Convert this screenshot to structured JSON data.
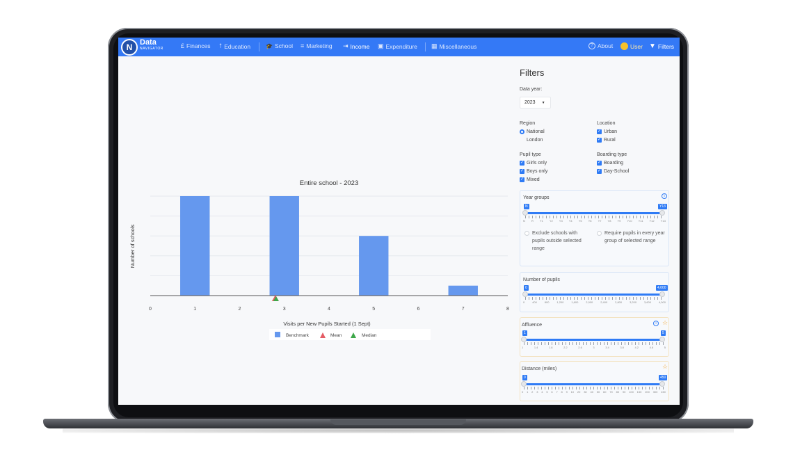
{
  "app": {
    "brand_main": "Data",
    "brand_sub": "NAVIGATOR",
    "logo_letter": "N"
  },
  "nav": {
    "items": [
      {
        "label": "Finances",
        "icon": "£"
      },
      {
        "label": "Education",
        "icon": "⭡"
      },
      {
        "label": "School",
        "icon": "🎓"
      },
      {
        "label": "Marketing",
        "icon": "≡"
      },
      {
        "label": "Income",
        "icon": "⇥"
      },
      {
        "label": "Expenditure",
        "icon": "▣"
      },
      {
        "label": "Miscellaneous",
        "icon": "▦"
      }
    ],
    "about": "About",
    "user": "User",
    "filters": "Filters"
  },
  "chart_data": {
    "type": "bar",
    "title": "Entire school - 2023",
    "xlabel": "Visits per New Pupils Started (1 Sept)",
    "ylabel": "Number of schools",
    "xlim": [
      0,
      8
    ],
    "x_ticks": [
      "0",
      "1",
      "2",
      "3",
      "4",
      "5",
      "6",
      "7",
      "8"
    ],
    "bars": [
      {
        "x": 1,
        "value": 5
      },
      {
        "x": 3,
        "value": 5
      },
      {
        "x": 5,
        "value": 3
      },
      {
        "x": 7,
        "value": 0.5
      }
    ],
    "ylim": [
      0,
      5
    ],
    "mean": 2.8,
    "median": 2.8,
    "grid": true,
    "legend": [
      "Benchmark",
      "Mean",
      "Median"
    ],
    "legend_position": "bottom",
    "colors": {
      "bar": "#6598ee",
      "mean": "#e45c64",
      "median": "#3ea84a"
    }
  },
  "filters": {
    "title": "Filters",
    "data_year_label": "Data year:",
    "data_year_value": "2023",
    "region_label": "Region",
    "region_options": [
      "National",
      "London"
    ],
    "location_label": "Location",
    "location_options": [
      "Urban",
      "Rural"
    ],
    "pupil_type_label": "Pupil type",
    "pupil_type_options": [
      "Girls only",
      "Boys only",
      "Mixed"
    ],
    "boarding_type_label": "Boarding type",
    "boarding_type_options": [
      "Boarding",
      "Day-School"
    ],
    "year_groups": {
      "title": "Year groups",
      "min_tag": "N",
      "max_tag": "Y13",
      "ticks": [
        "N",
        "R",
        "Y1",
        "Y2",
        "Y3",
        "Y4",
        "Y5",
        "Y6",
        "Y7",
        "Y8",
        "Y9",
        "Y10",
        "Y11",
        "Y12",
        "Y13"
      ],
      "option_1": "Exclude schools with pupils outside selected range",
      "option_2": "Require pupils in every year group of selected range"
    },
    "pupils": {
      "title": "Number of pupils",
      "min_tag": "0",
      "max_tag": "4,000",
      "ticks": [
        "0",
        "400",
        "800",
        "1,200",
        "1,600",
        "2,000",
        "2,400",
        "2,800",
        "3,200",
        "3,600",
        "4,000"
      ]
    },
    "affluence": {
      "title": "Affluence",
      "min_tag": "1",
      "max_tag": "5",
      "ticks": [
        "1",
        "1.4",
        "1.8",
        "2.2",
        "2.6",
        "3",
        "3.4",
        "3.8",
        "4.2",
        "4.6",
        "5"
      ]
    },
    "distance": {
      "title": "Distance (miles)",
      "min_tag": "0",
      "max_tag": "450",
      "ticks": [
        "0",
        "1",
        "2",
        "3",
        "4",
        "5",
        "6",
        "7",
        "8",
        "9",
        "10",
        "20",
        "30",
        "40",
        "50",
        "60",
        "70",
        "80",
        "90",
        "100",
        "150",
        "200",
        "300",
        "450"
      ]
    }
  }
}
